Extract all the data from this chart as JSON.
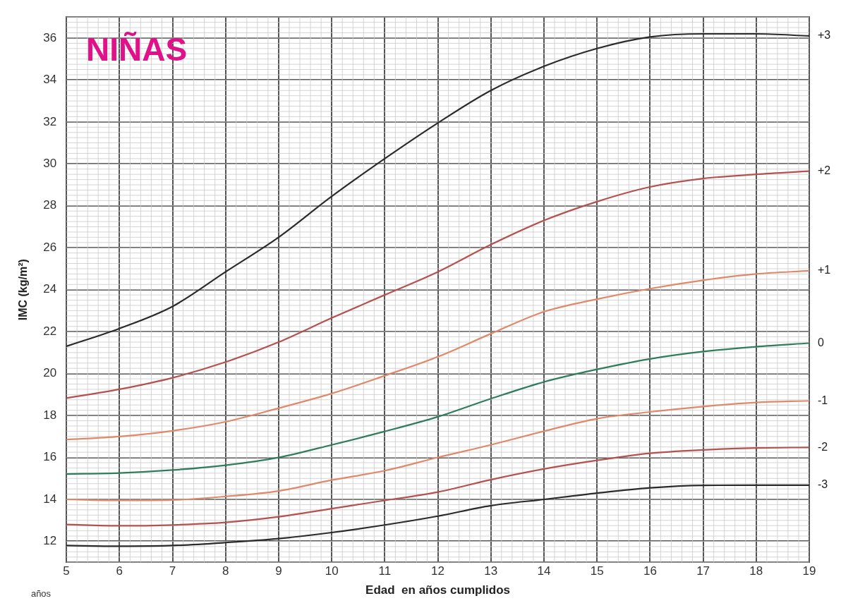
{
  "chart_data": {
    "type": "line",
    "title": "NIÑAS",
    "xlabel": "Edad  en años cumplidos",
    "ylabel": "IMC (kg/m²)",
    "annotations": [
      "años"
    ],
    "x": [
      5,
      6,
      7,
      8,
      9,
      10,
      11,
      12,
      13,
      14,
      15,
      16,
      17,
      18,
      19
    ],
    "series": [
      {
        "name": "+3",
        "color": "#2b2b2b",
        "values": [
          21.3,
          22.15,
          23.2,
          24.85,
          26.5,
          28.45,
          30.25,
          31.95,
          33.5,
          34.65,
          35.5,
          36.05,
          36.2,
          36.2,
          36.1
        ]
      },
      {
        "name": "+2",
        "color": "#b5514f",
        "values": [
          18.83,
          19.25,
          19.8,
          20.55,
          21.5,
          22.65,
          23.75,
          24.85,
          26.15,
          27.3,
          28.2,
          28.9,
          29.3,
          29.5,
          29.65
        ]
      },
      {
        "name": "+1",
        "color": "#e0896a",
        "values": [
          16.85,
          17.0,
          17.27,
          17.7,
          18.35,
          19.05,
          19.9,
          20.8,
          21.9,
          22.95,
          23.55,
          24.05,
          24.45,
          24.75,
          24.9
        ]
      },
      {
        "name": "0",
        "color": "#2e7d5b",
        "values": [
          15.21,
          15.26,
          15.4,
          15.63,
          16.0,
          16.6,
          17.24,
          17.94,
          18.8,
          19.6,
          20.2,
          20.7,
          21.05,
          21.28,
          21.45
        ]
      },
      {
        "name": "-1",
        "color": "#e0896a",
        "values": [
          14.0,
          13.95,
          13.97,
          14.14,
          14.4,
          14.92,
          15.37,
          16.0,
          16.6,
          17.25,
          17.85,
          18.17,
          18.43,
          18.62,
          18.7
        ]
      },
      {
        "name": "-2",
        "color": "#b5514f",
        "values": [
          12.8,
          12.74,
          12.78,
          12.9,
          13.17,
          13.56,
          13.95,
          14.35,
          14.94,
          15.45,
          15.86,
          16.2,
          16.36,
          16.45,
          16.48
        ]
      },
      {
        "name": "-3",
        "color": "#2b2b2b",
        "values": [
          11.8,
          11.77,
          11.8,
          11.94,
          12.13,
          12.42,
          12.78,
          13.2,
          13.7,
          14.0,
          14.3,
          14.55,
          14.67,
          14.68,
          14.68
        ]
      }
    ],
    "xlim": [
      5,
      19
    ],
    "xticks": [
      5,
      6,
      7,
      8,
      9,
      10,
      11,
      12,
      13,
      14,
      15,
      16,
      17,
      18,
      19
    ],
    "ylim": [
      11,
      37
    ],
    "yticks": [
      12,
      14,
      16,
      18,
      20,
      22,
      24,
      26,
      28,
      30,
      32,
      34,
      36
    ],
    "grid": true,
    "legend": false,
    "marker": "none",
    "line_style": "solid"
  }
}
